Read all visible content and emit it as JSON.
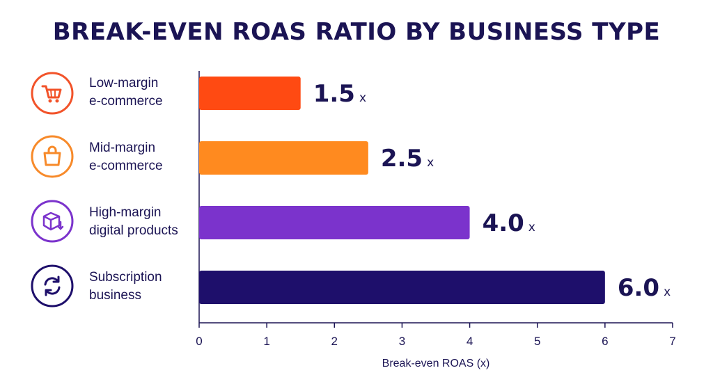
{
  "chart_data": {
    "type": "bar",
    "orientation": "horizontal",
    "title": "BREAK-EVEN ROAS RATIO BY BUSINESS TYPE",
    "xlabel": "Break-even ROAS (x)",
    "ylabel": "",
    "xlim": [
      0,
      7
    ],
    "xticks": [
      "0",
      "1",
      "2",
      "3",
      "4",
      "5",
      "6",
      "7"
    ],
    "grid": false,
    "unit_suffix": "x",
    "categories": [
      {
        "label_lines": [
          "Low-margin",
          "e-commerce"
        ],
        "icon": "cart-icon",
        "color": "#ff4a12",
        "value": 1.5,
        "value_label": "1.5"
      },
      {
        "label_lines": [
          "Mid-margin",
          "e-commerce"
        ],
        "icon": "shopping-bag-icon",
        "color": "#ff8a1f",
        "value": 2.5,
        "value_label": "2.5"
      },
      {
        "label_lines": [
          "High-margin",
          "digital products"
        ],
        "icon": "digital-box-icon",
        "color": "#7b33cc",
        "value": 4.0,
        "value_label": "4.0"
      },
      {
        "label_lines": [
          "Subscription",
          "business"
        ],
        "icon": "refresh-cycle-icon",
        "color": "#1e0f6b",
        "value": 6.0,
        "value_label": "6.0"
      }
    ]
  }
}
